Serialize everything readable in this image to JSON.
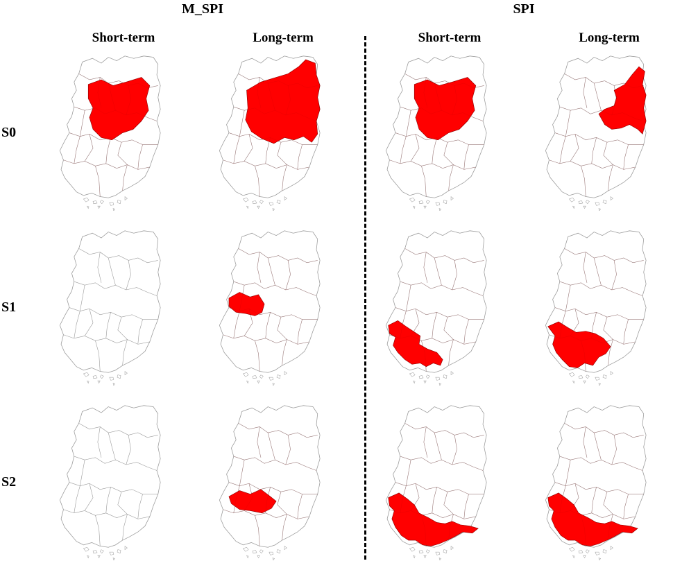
{
  "groups": [
    {
      "title": "M_SPI"
    },
    {
      "title": "SPI"
    }
  ],
  "columns": [
    {
      "title": "Short-term"
    },
    {
      "title": "Long-term"
    },
    {
      "title": "Short-term"
    },
    {
      "title": "Long-term"
    }
  ],
  "rows": [
    {
      "label": "S0"
    },
    {
      "label": "S1"
    },
    {
      "label": "S2"
    }
  ],
  "colors": {
    "highlight": "#ff0000",
    "boundary": "#9a9a9a",
    "fill": "#ffffff"
  },
  "highlighted_regions": [
    [
      "north-central",
      "north-east",
      "north-central",
      "north-east-strip"
    ],
    [
      "",
      "west-central",
      "south-west",
      "south-west-wide"
    ],
    [
      "",
      "west-central-wide",
      "south-coast",
      "south-coast"
    ]
  ]
}
